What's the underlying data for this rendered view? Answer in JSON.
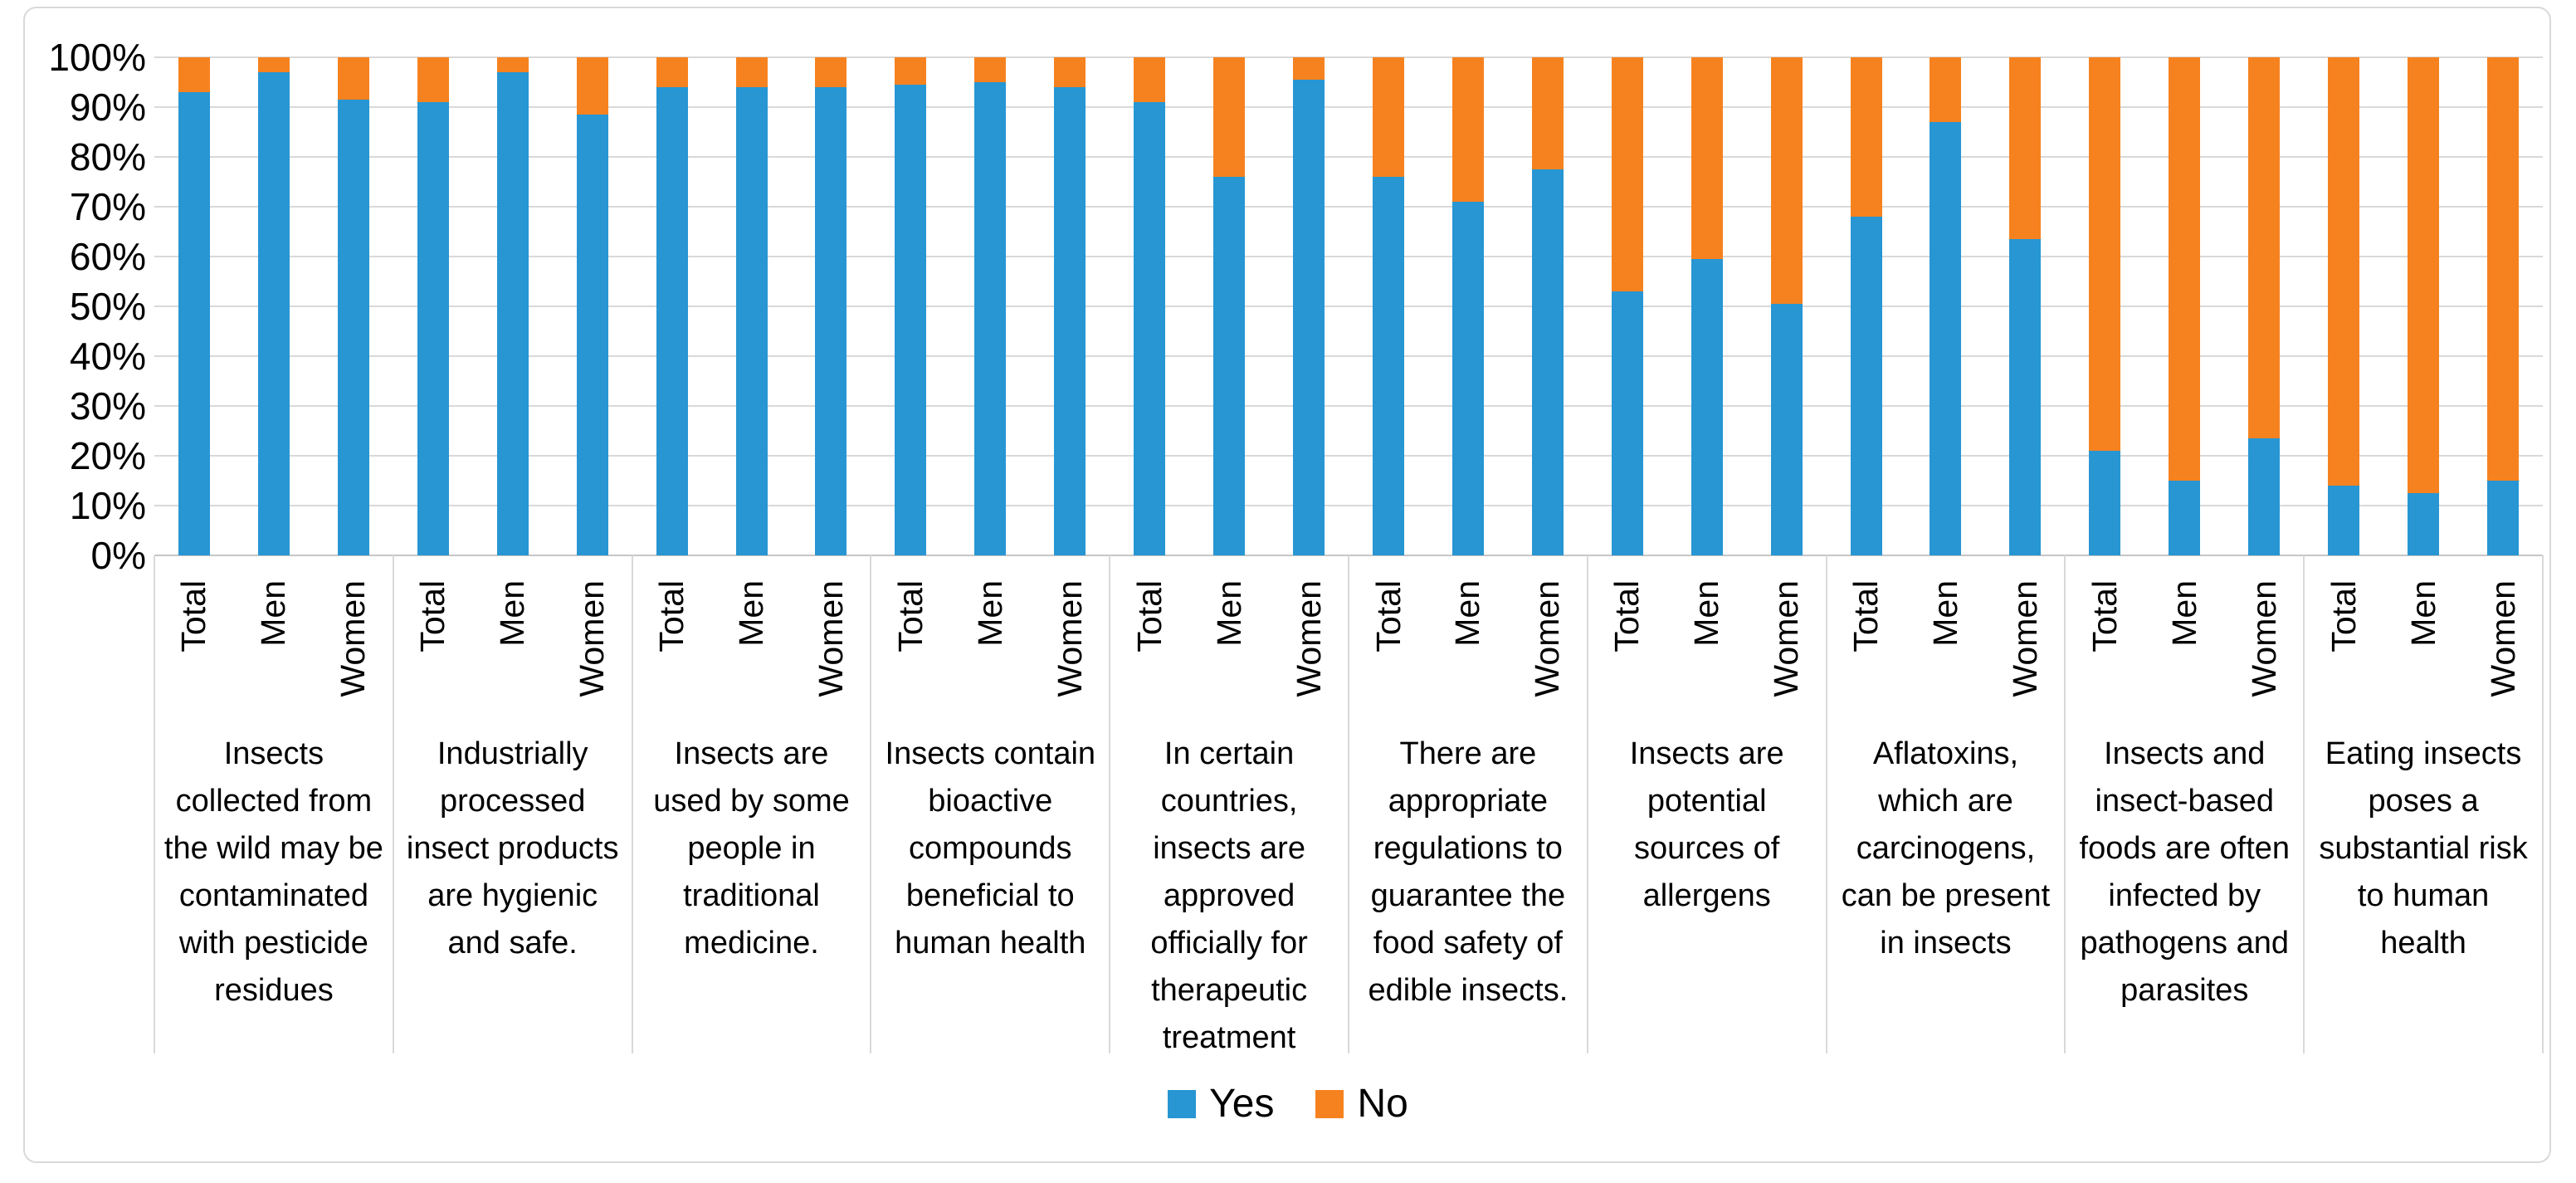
{
  "chart_data": {
    "type": "bar",
    "stacked": true,
    "percent": true,
    "title": "",
    "xlabel": "",
    "ylabel": "",
    "ylim": [
      0,
      100
    ],
    "grid": true,
    "legend_position": "bottom",
    "y_ticks": [
      "100%",
      "90%",
      "80%",
      "70%",
      "60%",
      "50%",
      "40%",
      "30%",
      "20%",
      "10%",
      "0%"
    ],
    "subcategories": [
      "Total",
      "Men",
      "Women"
    ],
    "categories": [
      "Insects collected from the wild may be contaminated with pesticide residues",
      "Industrially processed insect products are hygienic and safe.",
      "Insects are used by some people in traditional medicine.",
      "Insects contain bioactive compounds beneficial to human health",
      "In certain countries, insects are approved officially for therapeutic treatment",
      "There are appropriate regulations to guarantee the food safety of edible insects.",
      "Insects are potential sources of allergens",
      "Aflatoxins, which are carcinogens, can be present in insects",
      "Insects and insect-based foods are often infected by pathogens and parasites",
      "Eating insects poses a substantial risk to human health"
    ],
    "series": [
      {
        "name": "Yes",
        "color": "#2796d3",
        "values": [
          [
            93,
            97,
            91.5
          ],
          [
            91,
            97,
            88.5
          ],
          [
            94,
            94,
            94
          ],
          [
            94.5,
            95,
            94
          ],
          [
            91,
            76,
            95.5
          ],
          [
            76,
            71,
            77.5
          ],
          [
            53,
            59.5,
            50.5
          ],
          [
            68,
            87,
            63.5
          ],
          [
            21,
            15,
            23.5
          ],
          [
            14,
            12.5,
            15
          ]
        ]
      },
      {
        "name": "No",
        "color": "#f6821f",
        "values": [
          [
            7,
            3,
            8.5
          ],
          [
            9,
            3,
            11.5
          ],
          [
            6,
            6,
            6
          ],
          [
            5.5,
            5,
            6
          ],
          [
            9,
            24,
            4.5
          ],
          [
            24,
            29,
            22.5
          ],
          [
            47,
            40.5,
            49.5
          ],
          [
            32,
            13,
            36.5
          ],
          [
            79,
            85,
            76.5
          ],
          [
            86,
            87.5,
            85
          ]
        ]
      }
    ],
    "colors": {
      "yes": "#2796d3",
      "no": "#f6821f",
      "gridline": "#d9d9d9",
      "axis": "#c6c6c6",
      "text": "#000000"
    }
  }
}
